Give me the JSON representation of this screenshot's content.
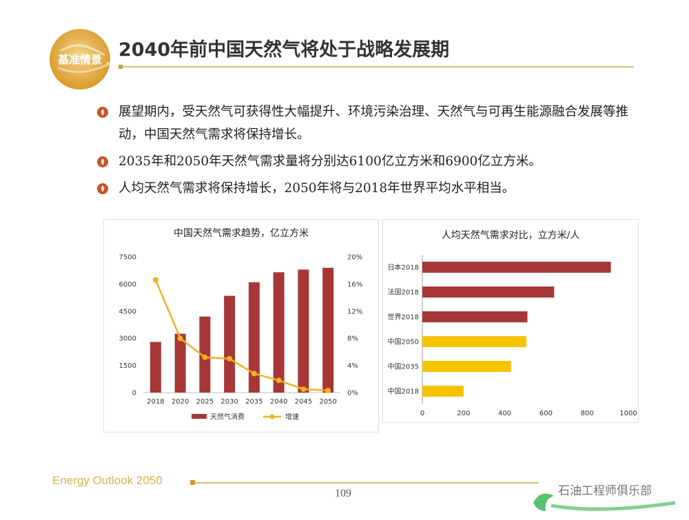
{
  "slide": {
    "badge_text": "基准情景",
    "title": "2040年前中国天然气将处于战略发展期",
    "bullets": [
      "展望期内，受天然气可获得性大幅提升、环境污染治理、天然气与可再生能源融合发展等推动，中国天然气需求将保持增长。",
      "2035年和2050年天然气需求量将分别达6100亿立方米和6900亿立方米。",
      "人均天然气需求将保持增长，2050年将与2018年世界平均水平相当。"
    ],
    "footer": "Energy Outlook 2050",
    "page_number": "109",
    "watermark": "石油工程师俱乐部"
  },
  "colors": {
    "bar": "#a73737",
    "line": "#f1b21d",
    "accent": "#d9c26a",
    "bullet": "#c8541e",
    "gold": "#f5c400"
  },
  "chart_data": [
    {
      "type": "bar",
      "title": "中国天然气需求趋势，亿立方米",
      "categories": [
        "2018",
        "2020",
        "2025",
        "2030",
        "2035",
        "2040",
        "2045",
        "2050"
      ],
      "series": [
        {
          "name": "天然气消费",
          "type": "bar",
          "axis": "left",
          "values": [
            2800,
            3250,
            4200,
            5350,
            6100,
            6650,
            6800,
            6900
          ]
        },
        {
          "name": "增速",
          "type": "line",
          "axis": "right",
          "values": [
            16.6,
            8.0,
            5.2,
            5.0,
            2.8,
            1.8,
            0.5,
            0.3
          ]
        }
      ],
      "ylim_left": [
        0,
        7500
      ],
      "yticks_left": [
        "0",
        "1500",
        "3000",
        "4500",
        "6000",
        "7500"
      ],
      "ylim_right": [
        0,
        20
      ],
      "yticks_right": [
        "0%",
        "4%",
        "8%",
        "12%",
        "16%",
        "20%"
      ],
      "grid": false,
      "legend": "bottom"
    },
    {
      "type": "bar",
      "orientation": "horizontal",
      "title": "人均天然气需求对比，立方米/人",
      "categories": [
        "日本2018",
        "法国2018",
        "世界2018",
        "中国2050",
        "中国2035",
        "中国2018"
      ],
      "values": [
        915,
        640,
        510,
        505,
        430,
        200
      ],
      "colors": [
        "#a73737",
        "#a73737",
        "#a73737",
        "#f5c400",
        "#f5c400",
        "#f5c400"
      ],
      "xlim": [
        0,
        1000
      ],
      "xticks": [
        "0",
        "200",
        "400",
        "600",
        "800",
        "1000"
      ],
      "grid": false,
      "legend": "none"
    }
  ]
}
